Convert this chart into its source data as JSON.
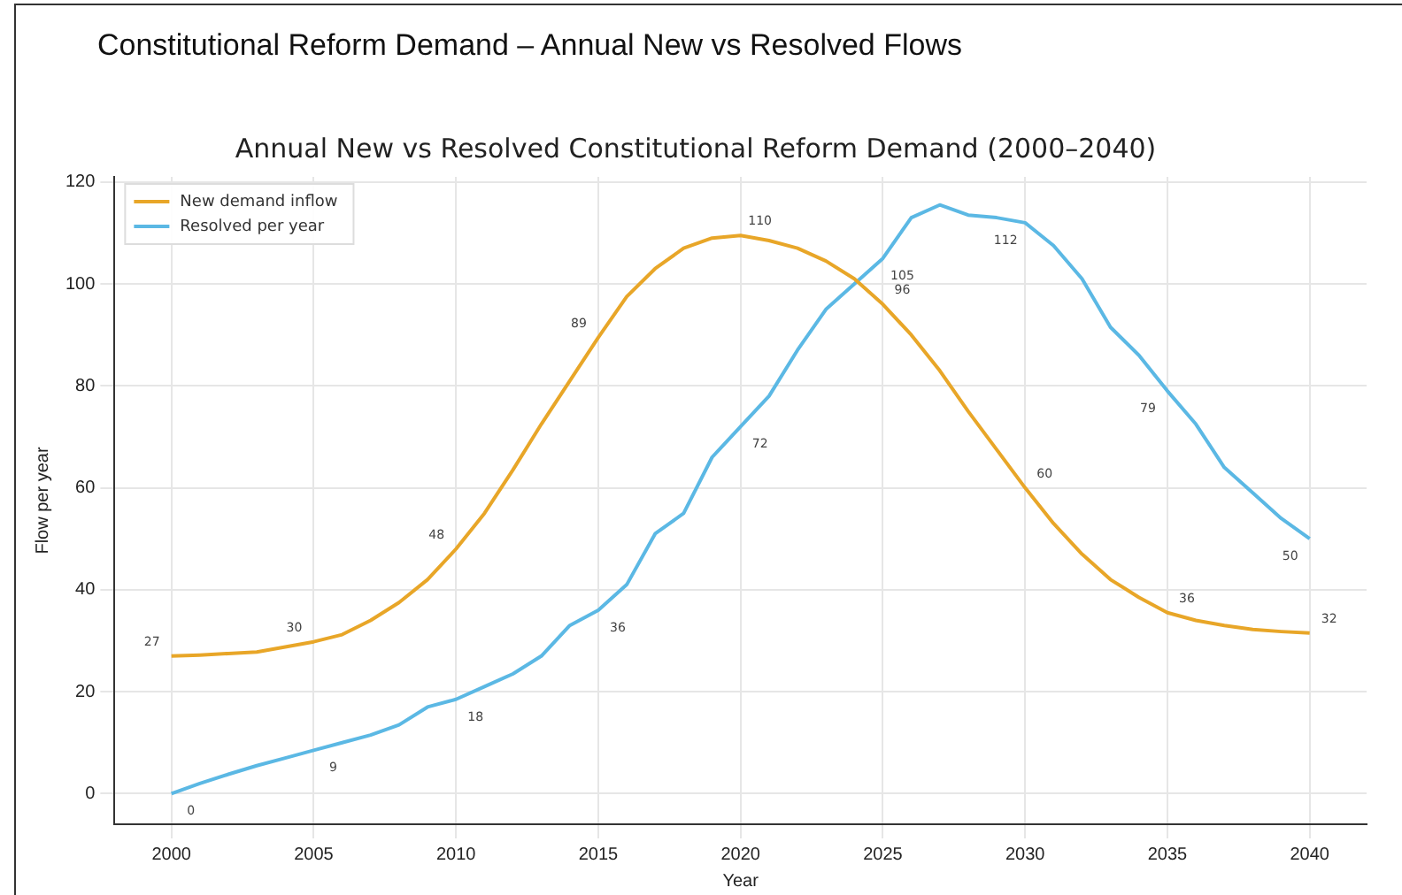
{
  "chart_data": {
    "type": "line",
    "title": "Constitutional Reform Demand – Annual New vs Resolved Flows",
    "subtitle": "Annual New vs Resolved Constitutional Reform Demand (2000–2040)",
    "xlabel": "Year",
    "ylabel": "Flow per year",
    "x": [
      2000,
      2001,
      2002,
      2003,
      2004,
      2005,
      2006,
      2007,
      2008,
      2009,
      2010,
      2011,
      2012,
      2013,
      2014,
      2015,
      2016,
      2017,
      2018,
      2019,
      2020,
      2021,
      2022,
      2023,
      2024,
      2025,
      2026,
      2027,
      2028,
      2029,
      2030,
      2031,
      2032,
      2033,
      2034,
      2035,
      2036,
      2037,
      2038,
      2039,
      2040
    ],
    "xlim": [
      1998,
      2042
    ],
    "xticks": [
      2000,
      2005,
      2010,
      2015,
      2020,
      2025,
      2030,
      2035,
      2040
    ],
    "ylim": [
      -6,
      121
    ],
    "yticks": [
      0,
      20,
      40,
      60,
      80,
      100,
      120
    ],
    "grid": true,
    "legend": "top left",
    "marker": "none",
    "line_style": "solid",
    "series": [
      {
        "name": "New demand inflow",
        "color": "#e8a628",
        "values": [
          27,
          27.2,
          27.5,
          27.8,
          28.8,
          29.8,
          31.2,
          34,
          37.5,
          42,
          48,
          55,
          63.5,
          72.5,
          81,
          89.5,
          97.5,
          103,
          107,
          109,
          109.5,
          108.5,
          107,
          104.5,
          101,
          96,
          90,
          83,
          75,
          67.5,
          60,
          53,
          47,
          42,
          38.5,
          35.5,
          34,
          33,
          32.2,
          31.8,
          31.5
        ],
        "value_labels": [
          "27",
          null,
          null,
          null,
          null,
          "30",
          null,
          null,
          null,
          null,
          "48",
          null,
          null,
          null,
          null,
          "89",
          null,
          null,
          null,
          null,
          "110",
          null,
          null,
          null,
          null,
          "96",
          null,
          null,
          null,
          null,
          "60",
          null,
          null,
          null,
          null,
          "36",
          null,
          null,
          null,
          null,
          "32"
        ]
      },
      {
        "name": "Resolved per year",
        "color": "#5bb8e4",
        "values": [
          0,
          2,
          3.8,
          5.5,
          7,
          8.5,
          10,
          11.5,
          13.5,
          17,
          18.5,
          21,
          23.5,
          27,
          33,
          36,
          41,
          51,
          55,
          66,
          72,
          78,
          87,
          95,
          100,
          105,
          113,
          115.5,
          113.5,
          113,
          112,
          107.5,
          101,
          91.5,
          86,
          79,
          72.5,
          64,
          59,
          54,
          50
        ],
        "value_labels": [
          "0",
          null,
          null,
          null,
          null,
          "9",
          null,
          null,
          null,
          null,
          "18",
          null,
          null,
          null,
          null,
          "36",
          null,
          null,
          null,
          null,
          "72",
          null,
          null,
          null,
          null,
          "105",
          null,
          null,
          null,
          null,
          "112",
          null,
          null,
          null,
          null,
          "79",
          null,
          null,
          null,
          null,
          "50"
        ]
      }
    ]
  }
}
